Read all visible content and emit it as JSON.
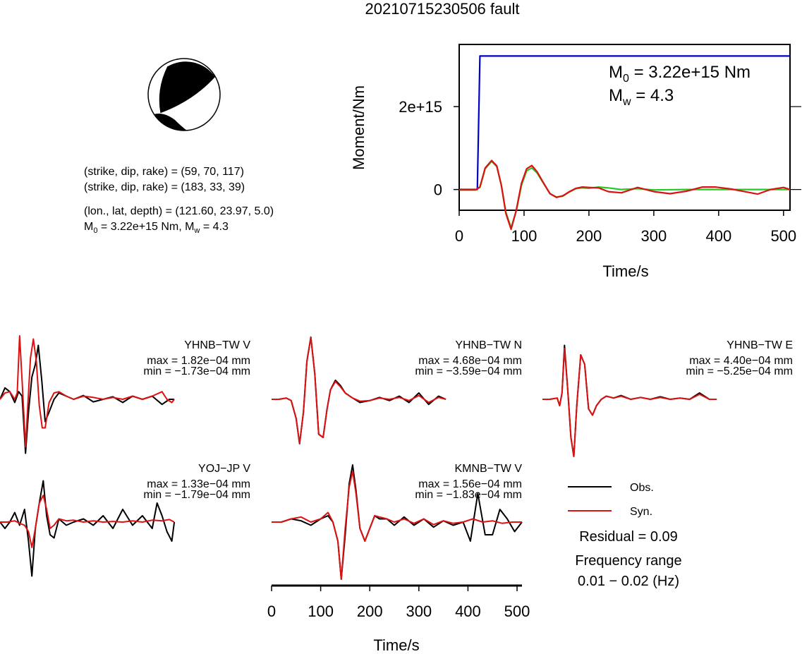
{
  "title": "20210715230506 fault",
  "mechanism": {
    "planes": [
      {
        "strike": 59,
        "dip": 70,
        "rake": 117
      },
      {
        "strike": 183,
        "dip": 33,
        "rake": 39
      }
    ],
    "info_lines": [
      "(strike, dip, rake) = (59, 70, 117)",
      "(strike, dip, rake) = (183, 33, 39)",
      "(lon., lat, depth) = (121.60, 23.97, 5.0)"
    ],
    "m0_label": "M",
    "m0_sub": "0",
    "m0_value": " = 3.22e+15 Nm, M",
    "mw_sub": "w",
    "mw_value": " = 4.3"
  },
  "moment_panel": {
    "m0_prefix": "M",
    "m0_sub": "0",
    "m0_text": " = 3.22e+15 Nm",
    "mw_prefix": "M",
    "mw_sub": "w",
    "mw_text": " = 4.3"
  },
  "chart_data": [
    {
      "type": "line",
      "id": "moment-rate",
      "xlabel": "Time/s",
      "ylabel": "Moment/Nm",
      "xlim": [
        0,
        510
      ],
      "ylim": [
        -500000000000000.0,
        3500000000000000.0
      ],
      "xticks": [
        0,
        100,
        200,
        300,
        400,
        500
      ],
      "ytick_labels": [
        {
          "value": 0,
          "label": "0"
        },
        {
          "value": 2000000000000000.0,
          "label": "2e+15"
        }
      ],
      "series": [
        {
          "color": "#0000cc",
          "x": [
            0,
            25,
            28,
            32,
            35,
            510
          ],
          "y": [
            0,
            0,
            0,
            3220000000000000.0,
            3220000000000000.0,
            3220000000000000.0
          ]
        },
        {
          "color": "#22cc22",
          "x": [
            0,
            25,
            32,
            40,
            50,
            58,
            65,
            72,
            80,
            88,
            96,
            104,
            112,
            120,
            130,
            140,
            150,
            160,
            170,
            180,
            190,
            200,
            215,
            230,
            250,
            275,
            300,
            350,
            400,
            450,
            510
          ],
          "y": [
            -10000000000000.0,
            -10000000000000.0,
            50000000000000.0,
            500000000000000.0,
            680000000000000.0,
            550000000000000.0,
            100000000000000.0,
            -550000000000000.0,
            -920000000000000.0,
            -520000000000000.0,
            100000000000000.0,
            450000000000000.0,
            520000000000000.0,
            400000000000000.0,
            150000000000000.0,
            -100000000000000.0,
            -180000000000000.0,
            -160000000000000.0,
            -60000000000000.0,
            20000000000000.0,
            40000000000000.0,
            30000000000000.0,
            60000000000000.0,
            40000000000000.0,
            0,
            20000000000000.0,
            -10000000000000.0,
            0,
            0,
            0,
            0
          ]
        },
        {
          "color": "#dd1111",
          "x": [
            0,
            25,
            32,
            40,
            50,
            58,
            65,
            72,
            80,
            88,
            96,
            104,
            112,
            120,
            130,
            140,
            150,
            160,
            170,
            180,
            190,
            200,
            215,
            230,
            250,
            275,
            300,
            325,
            350,
            375,
            395,
            420,
            440,
            460,
            480,
            500,
            510
          ],
          "y": [
            -10000000000000.0,
            -10000000000000.0,
            60000000000000.0,
            520000000000000.0,
            700000000000000.0,
            570000000000000.0,
            100000000000000.0,
            -580000000000000.0,
            -960000000000000.0,
            -500000000000000.0,
            150000000000000.0,
            500000000000000.0,
            580000000000000.0,
            430000000000000.0,
            160000000000000.0,
            -100000000000000.0,
            -190000000000000.0,
            -150000000000000.0,
            -50000000000000.0,
            30000000000000.0,
            60000000000000.0,
            50000000000000.0,
            40000000000000.0,
            -50000000000000.0,
            -80000000000000.0,
            50000000000000.0,
            -50000000000000.0,
            -100000000000000.0,
            -40000000000000.0,
            60000000000000.0,
            60000000000000.0,
            10000000000000.0,
            -50000000000000.0,
            -110000000000000.0,
            0,
            50000000000000.0,
            0
          ]
        }
      ]
    },
    {
      "type": "line",
      "id": "waveforms",
      "xlabel": "Time/s",
      "xlim": [
        0,
        510
      ],
      "xticks": [
        0,
        100,
        200,
        300,
        400,
        500
      ],
      "ylim": [
        -1,
        1
      ],
      "legend": {
        "placement": "right",
        "entries": [
          {
            "label": "Obs.",
            "color": "#000000"
          },
          {
            "label": "Syn.",
            "color": "#dd1111"
          }
        ]
      },
      "residual": "Residual = 0.09",
      "freq_title": "Frequency range",
      "freq_value": "0.01 − 0.02 (Hz)",
      "stations": [
        {
          "name": "YHNB−TW V",
          "max": "max = 1.82e−04 mm",
          "min": "min = −1.73e−04 mm",
          "obs": {
            "x": [
              0,
              10,
              20,
              30,
              38,
              45,
              52,
              58,
              65,
              72,
              78,
              85,
              92,
              100,
              110,
              120,
              135,
              150,
              170,
              190,
              210,
              230,
              250,
              270,
              290,
              310,
              330,
              345,
              355
            ],
            "y": [
              0,
              0.18,
              0.12,
              -0.05,
              0.12,
              0.05,
              -0.85,
              -0.2,
              0.35,
              0.55,
              0.85,
              0.3,
              -0.35,
              -0.2,
              0.0,
              0.1,
              0.05,
              0.0,
              0.06,
              -0.04,
              0.0,
              0.04,
              -0.05,
              0.05,
              0.0,
              0.05,
              -0.08,
              0.0,
              0.0
            ]
          },
          "syn": {
            "x": [
              0,
              10,
              20,
              30,
              35,
              40,
              45,
              52,
              58,
              62,
              68,
              74,
              80,
              86,
              92,
              100,
              110,
              120,
              135,
              150,
              170,
              190,
              210,
              230,
              250,
              270,
              290,
              310,
              330,
              340,
              350,
              355
            ],
            "y": [
              0,
              0.1,
              0.12,
              0.0,
              0.1,
              1.0,
              0.3,
              -0.75,
              0.1,
              0.65,
              0.95,
              0.6,
              -0.1,
              -0.45,
              -0.45,
              -0.05,
              0.1,
              0.12,
              0.05,
              0.0,
              0.05,
              0.03,
              0.0,
              0.03,
              0.0,
              0.05,
              0.0,
              0.05,
              0.12,
              0.0,
              -0.05,
              0.0
            ]
          }
        },
        {
          "name": "YHNB−TW N",
          "max": "max = 4.68e−04 mm",
          "min": "min = −3.59e−04 mm",
          "obs": {
            "x": [
              0,
              15,
              30,
              40,
              50,
              57,
              65,
              72,
              80,
              88,
              96,
              105,
              113,
              120,
              130,
              140,
              150,
              165,
              180,
              200,
              220,
              240,
              260,
              280,
              300,
              320,
              340,
              355
            ],
            "y": [
              0,
              0.0,
              0.02,
              -0.02,
              -0.3,
              -0.7,
              -0.2,
              0.6,
              0.98,
              0.4,
              -0.55,
              -0.6,
              -0.15,
              0.15,
              0.3,
              0.22,
              0.1,
              0.02,
              -0.05,
              -0.02,
              0.03,
              -0.02,
              0.05,
              -0.05,
              0.1,
              -0.08,
              0.05,
              0.0
            ]
          },
          "syn": {
            "x": [
              0,
              15,
              30,
              40,
              50,
              57,
              65,
              72,
              80,
              88,
              96,
              105,
              113,
              120,
              130,
              140,
              150,
              165,
              180,
              200,
              220,
              240,
              260,
              280,
              300,
              320,
              340,
              355
            ],
            "y": [
              0,
              0.0,
              0.02,
              -0.02,
              -0.3,
              -0.7,
              -0.2,
              0.6,
              0.98,
              0.4,
              -0.55,
              -0.6,
              -0.15,
              0.15,
              0.28,
              0.2,
              0.1,
              0.02,
              -0.03,
              -0.02,
              0.02,
              0.0,
              0.03,
              -0.02,
              0.06,
              -0.05,
              0.03,
              0.0
            ]
          }
        },
        {
          "name": "YHNB−TW E",
          "max": "max = 4.40e−04 mm",
          "min": "min = −5.25e−04 mm",
          "obs": {
            "x": [
              0,
              15,
              30,
              35,
              40,
              45,
              52,
              58,
              64,
              70,
              78,
              86,
              94,
              102,
              110,
              120,
              130,
              145,
              160,
              180,
              200,
              220,
              240,
              260,
              280,
              300,
              320,
              340,
              355
            ],
            "y": [
              0,
              0.0,
              0.02,
              -0.1,
              0.1,
              0.85,
              0.1,
              -0.6,
              -0.9,
              -0.1,
              0.7,
              0.55,
              -0.15,
              -0.25,
              -0.1,
              0.0,
              0.05,
              0.02,
              0.06,
              0.0,
              0.03,
              0.0,
              0.04,
              0.0,
              0.02,
              0.0,
              0.1,
              0.0,
              0.0
            ]
          },
          "syn": {
            "x": [
              0,
              15,
              30,
              35,
              40,
              45,
              52,
              58,
              64,
              70,
              78,
              86,
              94,
              102,
              110,
              120,
              130,
              145,
              160,
              180,
              200,
              220,
              240,
              260,
              280,
              300,
              320,
              340,
              355
            ],
            "y": [
              0,
              0.0,
              0.02,
              -0.1,
              0.1,
              0.8,
              0.1,
              -0.6,
              -0.9,
              -0.1,
              0.7,
              0.55,
              -0.15,
              -0.25,
              -0.1,
              0.0,
              0.05,
              0.02,
              0.05,
              0.0,
              0.03,
              0.0,
              0.03,
              0.0,
              0.02,
              0.0,
              0.08,
              0.0,
              0.0
            ]
          }
        },
        {
          "name": "YOJ−JP V",
          "max": "max = 1.33e−04 mm",
          "min": "min = −1.79e−04 mm",
          "obs": {
            "x": [
              0,
              10,
              20,
              30,
              40,
              50,
              58,
              65,
              72,
              80,
              88,
              95,
              102,
              110,
              120,
              135,
              150,
              170,
              190,
              210,
              230,
              250,
              270,
              290,
              310,
              320,
              330,
              340,
              350,
              355
            ],
            "y": [
              0,
              -0.1,
              0.0,
              0.15,
              -0.05,
              0.2,
              -0.3,
              -0.85,
              -0.1,
              0.3,
              0.65,
              0.1,
              -0.2,
              -0.25,
              0.05,
              -0.05,
              0.0,
              0.05,
              -0.05,
              0.1,
              -0.1,
              0.2,
              -0.05,
              0.1,
              -0.1,
              0.3,
              0.1,
              -0.15,
              -0.3,
              0.0
            ]
          },
          "syn": {
            "x": [
              0,
              15,
              30,
              40,
              50,
              58,
              65,
              72,
              80,
              88,
              95,
              102,
              110,
              120,
              135,
              150,
              170,
              190,
              210,
              230,
              250,
              270,
              290,
              310,
              330,
              345,
              355
            ],
            "y": [
              0,
              0.0,
              0.02,
              -0.02,
              -0.05,
              -0.15,
              -0.4,
              -0.1,
              0.3,
              0.42,
              0.2,
              -0.1,
              -0.05,
              0.05,
              0.02,
              0.03,
              0.0,
              0.02,
              0.0,
              0.01,
              0.0,
              0.02,
              0.0,
              0.03,
              0.02,
              0.04,
              0.0
            ]
          }
        },
        {
          "name": "KMNB−TW V",
          "max": "max = 1.56e−04 mm",
          "min": "min = −1.83e−04 mm",
          "obs": {
            "x": [
              0,
              20,
              40,
              60,
              80,
              100,
              115,
              125,
              135,
              142,
              150,
              158,
              165,
              172,
              180,
              190,
              200,
              210,
              220,
              235,
              250,
              270,
              290,
              310,
              330,
              350,
              370,
              390,
              405,
              420,
              435,
              450,
              465,
              480,
              495,
              510
            ],
            "y": [
              0,
              0.0,
              0.05,
              0.02,
              -0.05,
              0.05,
              0.1,
              0.0,
              -0.3,
              -0.9,
              -0.2,
              0.6,
              0.9,
              0.5,
              -0.1,
              -0.3,
              -0.1,
              0.1,
              0.05,
              0.05,
              -0.05,
              0.08,
              -0.05,
              0.05,
              -0.08,
              0.02,
              -0.05,
              0.0,
              -0.3,
              0.45,
              -0.2,
              -0.2,
              0.2,
              0.05,
              -0.15,
              0.0
            ]
          },
          "syn": {
            "x": [
              0,
              20,
              40,
              60,
              80,
              100,
              115,
              125,
              135,
              142,
              150,
              158,
              165,
              172,
              180,
              190,
              200,
              210,
              220,
              235,
              250,
              270,
              290,
              310,
              330,
              350,
              370,
              390,
              410,
              430,
              450,
              470,
              490,
              510
            ],
            "y": [
              0,
              0.0,
              0.05,
              0.08,
              0.0,
              0.05,
              0.15,
              0.0,
              -0.3,
              -0.9,
              -0.1,
              0.55,
              0.8,
              0.45,
              -0.1,
              -0.3,
              -0.1,
              0.1,
              0.08,
              0.05,
              0.0,
              0.05,
              -0.02,
              0.05,
              -0.04,
              0.02,
              -0.02,
              0.0,
              0.05,
              0.0,
              0.02,
              -0.02,
              0.0,
              0.0
            ]
          }
        }
      ]
    }
  ]
}
